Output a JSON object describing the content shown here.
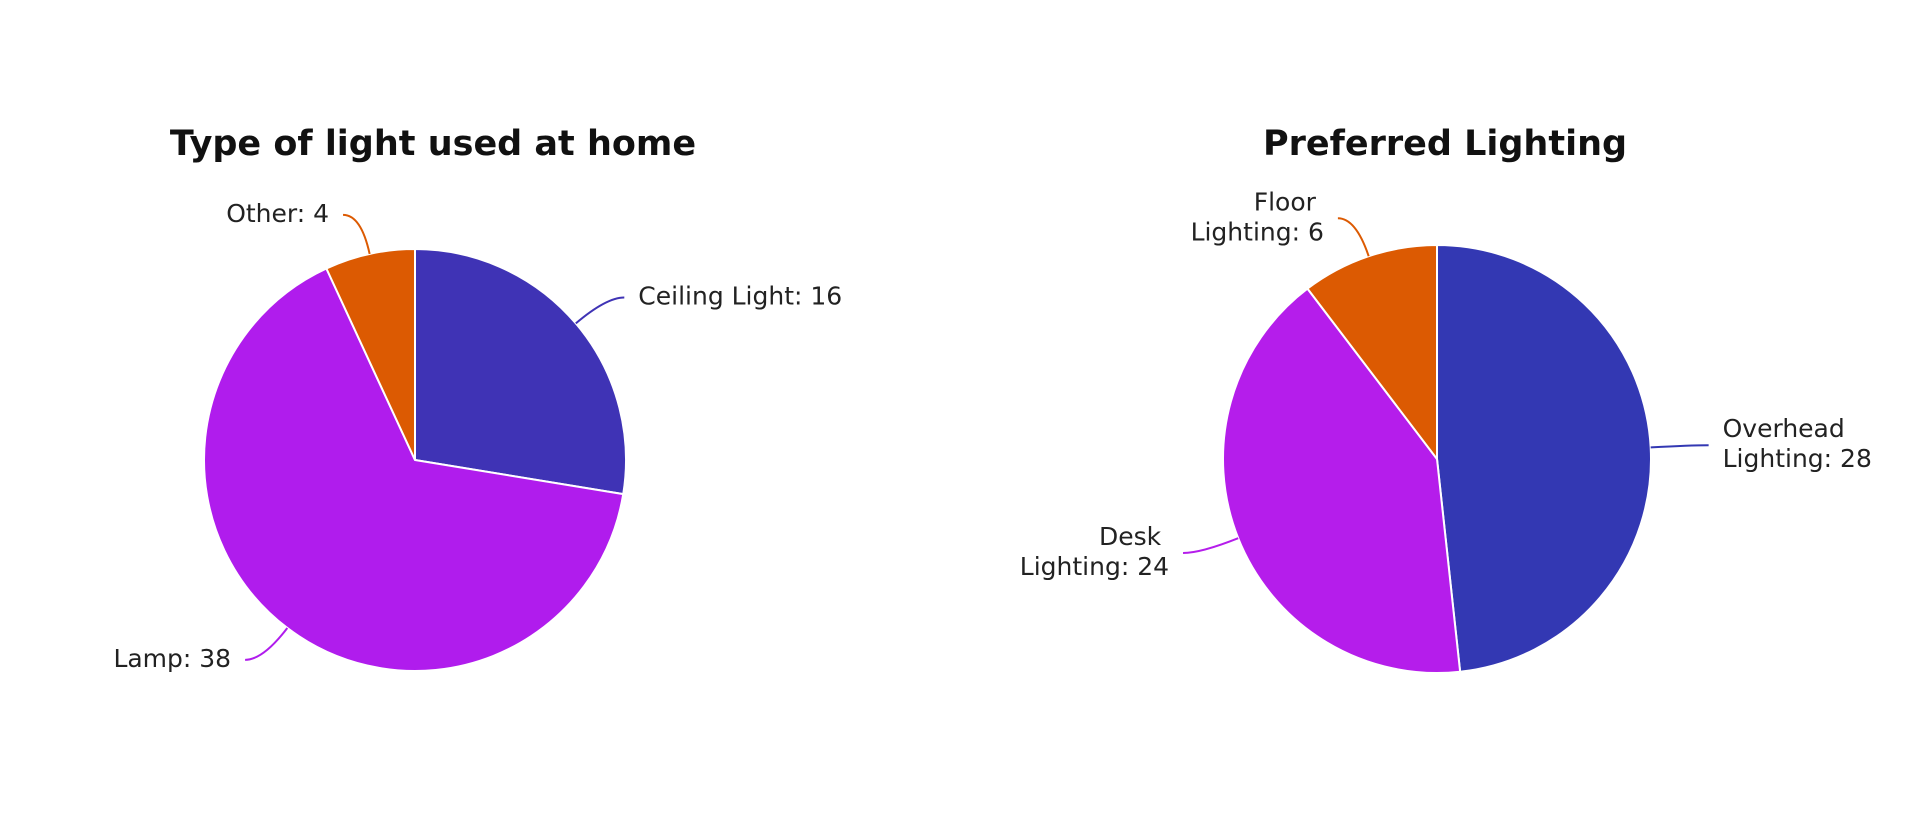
{
  "chart_data": [
    {
      "type": "pie",
      "title": "Type of light used at home",
      "values": [
        16,
        38,
        4
      ],
      "value_labels": [
        "Ceiling Light: 16",
        "Lamp: 38",
        "Other: 4"
      ],
      "colors": [
        "#3f33b5",
        "#b01ced",
        "#dc5a02"
      ]
    },
    {
      "type": "pie",
      "title": "Preferred Lighting",
      "values": [
        28,
        24,
        6
      ],
      "value_labels": [
        "Overhead Lighting: 28",
        "Desk Lighting: 24",
        "Floor Lighting: 6"
      ],
      "colors": [
        "#3338b3",
        "#b51deb",
        "#dc5a02"
      ]
    }
  ]
}
